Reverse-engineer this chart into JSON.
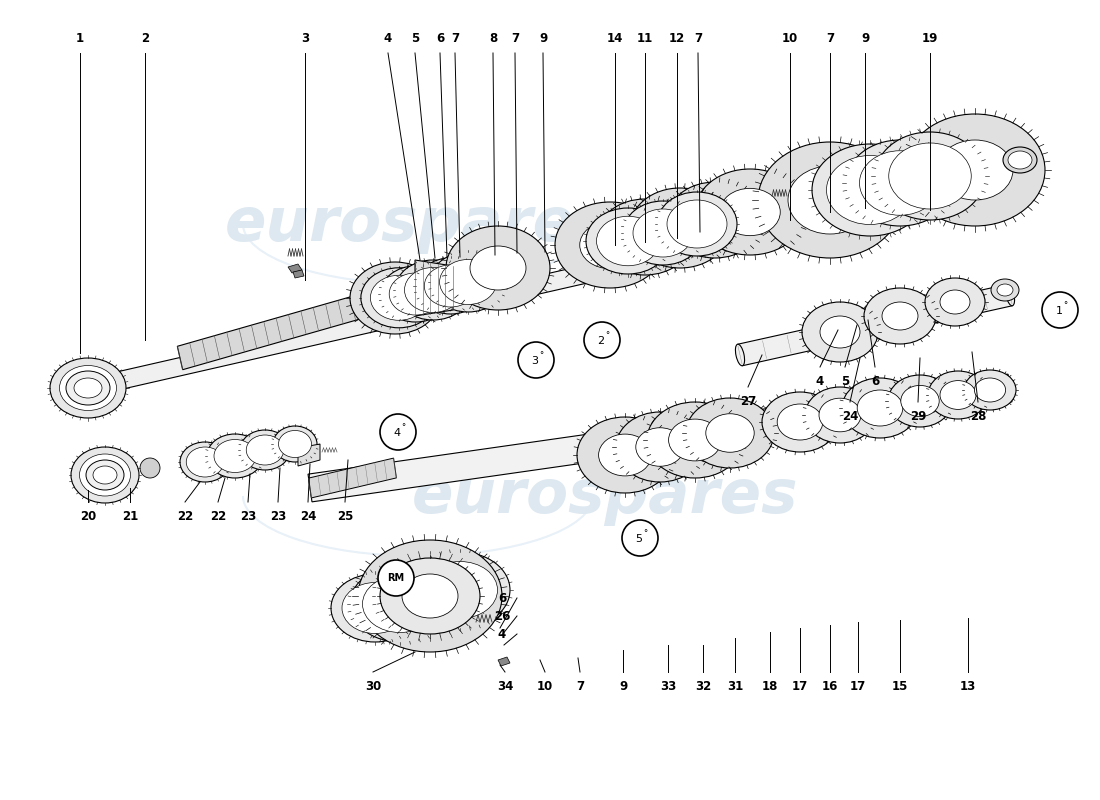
{
  "bg_color": "#ffffff",
  "watermark_color": "#dde8f0",
  "watermark_text": "eurospares",
  "line_color": "#000000",
  "gear_fill": "#e8e8e8",
  "gear_edge": "#000000",
  "shaft_fill": "#f0f0f0",
  "shaft_edge": "#000000",
  "label_fontsize": 8.5,
  "callout_fontsize": 8,
  "fig_width": 11.0,
  "fig_height": 8.0,
  "dpi": 100
}
